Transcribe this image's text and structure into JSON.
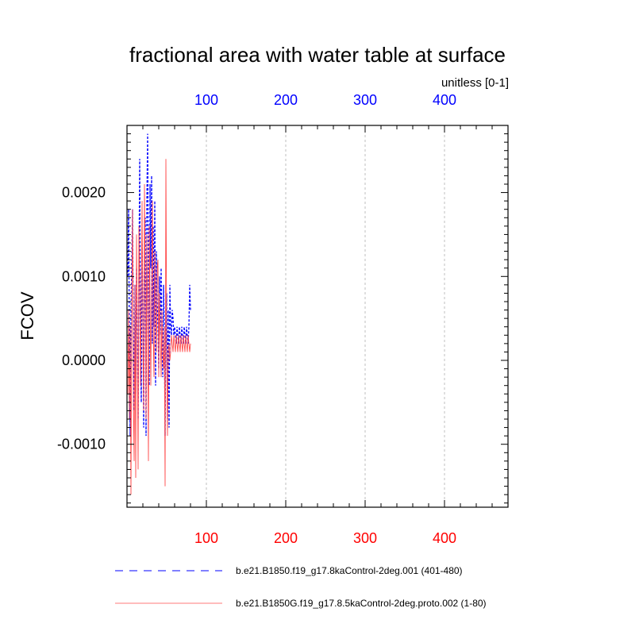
{
  "chart_data": {
    "type": "line",
    "title": "fractional area with water table at surface",
    "units_label": "unitless [0-1]",
    "ylabel": "FCOV",
    "xlabel": "",
    "xlim": [
      0,
      480
    ],
    "ylim": [
      -0.00175,
      0.0028
    ],
    "x_ticks": [
      100,
      200,
      300,
      400
    ],
    "x_tick_labels": [
      "100",
      "200",
      "300",
      "400"
    ],
    "top_axis_color": "#0000ff",
    "bottom_axis_color": "#ff0000",
    "y_ticks": [
      -0.001,
      0.0,
      0.001,
      0.002
    ],
    "y_tick_labels": [
      "-0.0010",
      "0.0000",
      "0.0010",
      "0.0020"
    ],
    "grid": "vertical-dashed",
    "legend_position": "bottom",
    "series": [
      {
        "name": "b.e21.B1850.f19_g17.8kaControl-2deg.001 (401-480)",
        "color": "#0000ff",
        "style": "dashed",
        "x": [
          1,
          2,
          3,
          4,
          5,
          6,
          7,
          8,
          9,
          10,
          11,
          12,
          13,
          14,
          15,
          16,
          17,
          18,
          19,
          20,
          21,
          22,
          23,
          24,
          25,
          26,
          27,
          28,
          29,
          30,
          31,
          32,
          33,
          34,
          35,
          36,
          37,
          38,
          39,
          40,
          41,
          42,
          43,
          44,
          45,
          46,
          47,
          48,
          49,
          50,
          51,
          52,
          53,
          54,
          55,
          56,
          57,
          58,
          59,
          60,
          61,
          62,
          63,
          64,
          65,
          66,
          67,
          68,
          69,
          70,
          71,
          72,
          73,
          74,
          75,
          76,
          77,
          78,
          79,
          80
        ],
        "values": [
          0.001,
          0.0018,
          0.0002,
          -0.0009,
          0.0005,
          0.0012,
          0.0018,
          0.0003,
          -0.0006,
          0.0009,
          -0.0004,
          0.0011,
          0.0004,
          -0.0007,
          0.001,
          0.0024,
          0.0003,
          -0.0005,
          0.0014,
          0.0006,
          -0.0008,
          0.0011,
          0.0017,
          -0.0009,
          0.0019,
          0.0027,
          0.0008,
          -0.0003,
          0.0021,
          0.0011,
          0.0022,
          0.0002,
          0.0016,
          0.0004,
          0.0019,
          -0.0003,
          0.0013,
          0.0007,
          0.0004,
          -0.0001,
          0.001,
          0.0003,
          0.0011,
          0.0003,
          -0.0002,
          0.0009,
          0.0004,
          -0.0009,
          0.0005,
          0.0008,
          -0.0007,
          0.0006,
          -0.0008,
          0.0009,
          0.0004,
          0.0003,
          0.0006,
          0.0005,
          0.0003,
          0.0004,
          0.0003,
          0.0002,
          0.0004,
          0.0003,
          0.0002,
          0.0004,
          0.0003,
          0.0002,
          0.0004,
          0.0003,
          0.0002,
          0.0004,
          0.0003,
          0.0002,
          0.0004,
          0.0003,
          0.0002,
          0.0004,
          0.0009,
          0.0006
        ]
      },
      {
        "name": "b.e21.B1850G.f19_g17.8.5kaControl-2deg.proto.002 (1-80)",
        "color": "#ff4b4b",
        "style": "solid",
        "x": [
          1,
          2,
          3,
          4,
          5,
          6,
          7,
          8,
          9,
          10,
          11,
          12,
          13,
          14,
          15,
          16,
          17,
          18,
          19,
          20,
          21,
          22,
          23,
          24,
          25,
          26,
          27,
          28,
          29,
          30,
          31,
          32,
          33,
          34,
          35,
          36,
          37,
          38,
          39,
          40,
          41,
          42,
          43,
          44,
          45,
          46,
          47,
          48,
          49,
          50,
          51,
          52,
          53,
          54,
          55,
          56,
          57,
          58,
          59,
          60,
          61,
          62,
          63,
          64,
          65,
          66,
          67,
          68,
          69,
          70,
          71,
          72,
          73,
          74,
          75,
          76,
          77,
          78,
          79,
          80
        ],
        "values": [
          -0.0004,
          0.0006,
          -0.0007,
          0.0004,
          -0.0016,
          0.0007,
          0.0018,
          -0.0005,
          -0.0012,
          0.0009,
          -0.0014,
          0.0015,
          0.0003,
          -0.0013,
          0.0016,
          0.0009,
          -0.0003,
          0.0007,
          0.0019,
          0.0002,
          -0.0006,
          0.0021,
          0.0009,
          -0.0007,
          0.0015,
          0.0004,
          -0.0012,
          0.0016,
          0.0007,
          -0.0003,
          0.001,
          0.0019,
          0.0003,
          -0.0002,
          0.0013,
          0.0006,
          0.0001,
          0.0011,
          0.0012,
          -0.0002,
          0.0008,
          0.0003,
          -0.0002,
          0.0006,
          0.0001,
          -0.0001,
          0.0004,
          -0.0015,
          0.0024,
          0.0002,
          -0.0009,
          0.0001,
          0.0002,
          0.0,
          0.0001,
          0.0003,
          0.0002,
          0.0001,
          0.0003,
          0.0002,
          0.0001,
          0.0003,
          0.0002,
          0.0001,
          0.0003,
          0.0002,
          0.0001,
          0.0003,
          0.0002,
          0.0001,
          0.0003,
          0.0002,
          0.0001,
          0.0003,
          0.0002,
          0.0001,
          0.0003,
          0.0002,
          0.0001,
          0.0002
        ]
      }
    ]
  }
}
